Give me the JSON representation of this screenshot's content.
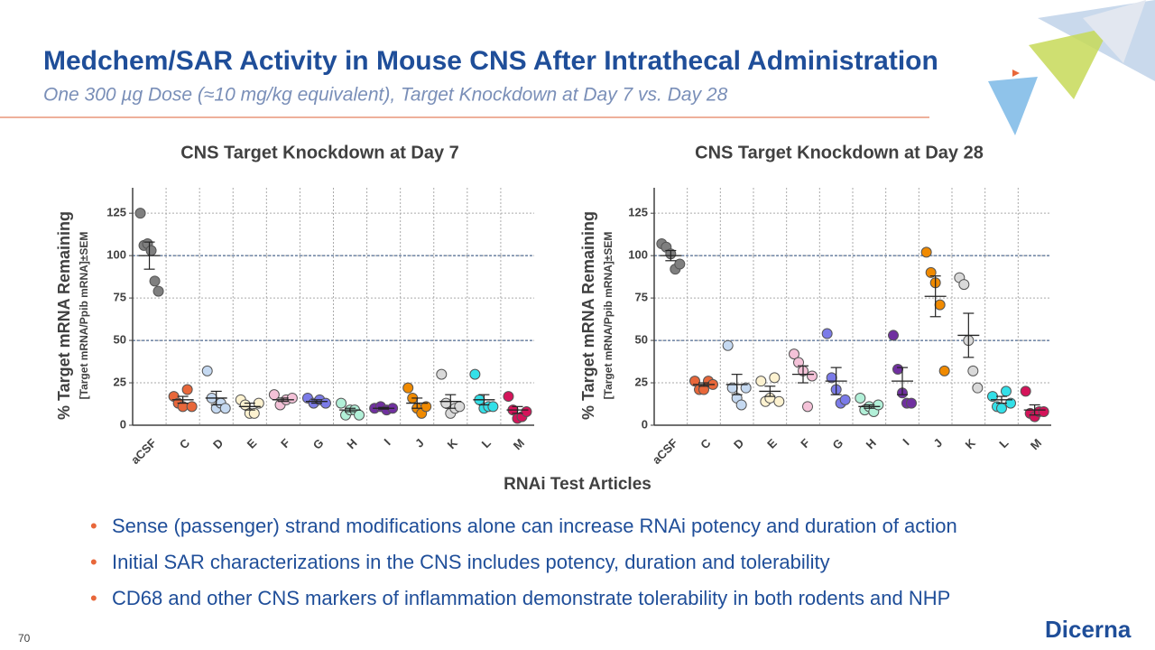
{
  "title": "Medchem/SAR Activity in Mouse CNS After Intrathecal Administration",
  "subtitle": "One 300 µg Dose (≈10 mg/kg equivalent), Target Knockdown at Day 7 vs. Day 28",
  "xlabel": "RNAi Test Articles",
  "bullets": [
    "Sense (passenger) strand modifications alone can increase RNAi potency and duration of action",
    "Initial SAR characterizations in the CNS includes potency, duration and tolerability",
    "CD68 and other CNS markers of inflammation demonstrate tolerability in both rodents and NHP"
  ],
  "page_number": "70",
  "logo": "Dicerna",
  "chart_data": [
    {
      "type": "dot-plot",
      "title": "CNS Target Knockdown at Day 7",
      "ylabel": "% Target mRNA Remaining",
      "ylabel_note": "[Target mRNA/Ppib mRNA]±SEM",
      "ylim": [
        0,
        140
      ],
      "yticks": [
        0,
        25,
        50,
        75,
        100,
        125
      ],
      "grid": true,
      "reference_lines": [
        50,
        100
      ],
      "categories": [
        "aCSF",
        "C",
        "D",
        "E",
        "F",
        "G",
        "H",
        "I",
        "J",
        "K",
        "L",
        "M"
      ],
      "groups": [
        {
          "color": "#7f7f7f",
          "values": [
            125,
            106,
            107,
            103,
            85,
            79
          ],
          "mean": 100,
          "sem": 8
        },
        {
          "color": "#e8673a",
          "values": [
            17,
            13,
            11,
            21,
            11
          ],
          "mean": 15,
          "sem": 2
        },
        {
          "color": "#c5d9f1",
          "values": [
            32,
            16,
            10,
            13,
            10
          ],
          "mean": 16,
          "sem": 4
        },
        {
          "color": "#fdf2d0",
          "values": [
            15,
            12,
            7,
            7,
            13
          ],
          "mean": 11,
          "sem": 2
        },
        {
          "color": "#f4c2d8",
          "values": [
            18,
            12,
            15,
            16
          ],
          "mean": 15,
          "sem": 1
        },
        {
          "color": "#7b7be8",
          "values": [
            16,
            13,
            15,
            13
          ],
          "mean": 14,
          "sem": 1
        },
        {
          "color": "#b2f0d8",
          "values": [
            13,
            6,
            9,
            9,
            6
          ],
          "mean": 9,
          "sem": 1
        },
        {
          "color": "#7030a0",
          "values": [
            10,
            11,
            9,
            10
          ],
          "mean": 10,
          "sem": 0.5
        },
        {
          "color": "#f08a00",
          "values": [
            22,
            16,
            10,
            7,
            11
          ],
          "mean": 13,
          "sem": 3
        },
        {
          "color": "#d9d9d9",
          "values": [
            30,
            13,
            7,
            10,
            11
          ],
          "mean": 14,
          "sem": 4
        },
        {
          "color": "#33e0e8",
          "values": [
            30,
            15,
            10,
            11,
            11
          ],
          "mean": 15,
          "sem": 3
        },
        {
          "color": "#d4145a",
          "values": [
            17,
            9,
            4,
            5,
            8
          ],
          "mean": 9,
          "sem": 2
        }
      ]
    },
    {
      "type": "dot-plot",
      "title": "CNS Target Knockdown at Day 28",
      "ylabel": "% Target mRNA Remaining",
      "ylabel_note": "[Target mRNA/Ppib mRNA]±SEM",
      "ylim": [
        0,
        140
      ],
      "yticks": [
        0,
        25,
        50,
        75,
        100,
        125
      ],
      "grid": true,
      "reference_lines": [
        50,
        100
      ],
      "categories": [
        "aCSF",
        "C",
        "D",
        "E",
        "F",
        "G",
        "H",
        "I",
        "J",
        "K",
        "L",
        "M"
      ],
      "groups": [
        {
          "color": "#7f7f7f",
          "values": [
            107,
            105,
            101,
            92,
            95
          ],
          "mean": 100,
          "sem": 3
        },
        {
          "color": "#e8673a",
          "values": [
            26,
            21,
            21,
            26,
            24
          ],
          "mean": 24,
          "sem": 1
        },
        {
          "color": "#c5d9f1",
          "values": [
            47,
            22,
            16,
            12,
            22
          ],
          "mean": 24,
          "sem": 6
        },
        {
          "color": "#fdf2d0",
          "values": [
            26,
            14,
            16,
            28,
            14
          ],
          "mean": 20,
          "sem": 3
        },
        {
          "color": "#f4c2d8",
          "values": [
            42,
            37,
            32,
            11,
            29
          ],
          "mean": 30,
          "sem": 5
        },
        {
          "color": "#7b7be8",
          "values": [
            54,
            28,
            21,
            13,
            15
          ],
          "mean": 26,
          "sem": 8
        },
        {
          "color": "#b2f0d8",
          "values": [
            16,
            9,
            11,
            8,
            12
          ],
          "mean": 11,
          "sem": 1
        },
        {
          "color": "#7030a0",
          "values": [
            53,
            33,
            19,
            13,
            13
          ],
          "mean": 26,
          "sem": 8
        },
        {
          "color": "#f08a00",
          "values": [
            102,
            90,
            84,
            71,
            32
          ],
          "mean": 76,
          "sem": 12
        },
        {
          "color": "#d9d9d9",
          "values": [
            87,
            83,
            50,
            32,
            22
          ],
          "mean": 53,
          "sem": 13
        },
        {
          "color": "#33e0e8",
          "values": [
            17,
            11,
            10,
            20,
            13
          ],
          "mean": 15,
          "sem": 2
        },
        {
          "color": "#d4145a",
          "values": [
            20,
            7,
            5,
            8,
            8
          ],
          "mean": 9,
          "sem": 3
        }
      ]
    }
  ]
}
